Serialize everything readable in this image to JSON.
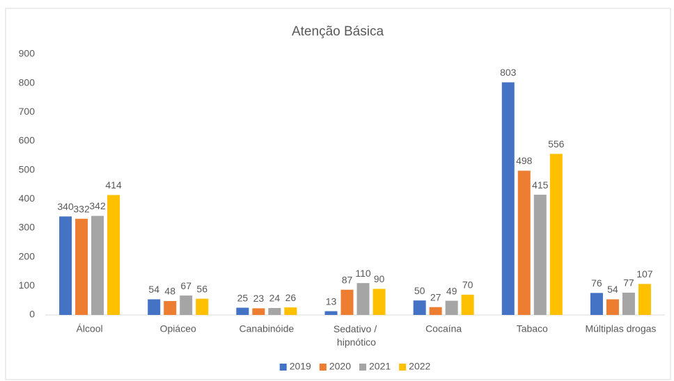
{
  "chart_data": {
    "type": "bar",
    "title": "Atenção Básica",
    "categories": [
      "Álcool",
      "Opiáceo",
      "Canabinóide",
      "Sedativo / hipnótico",
      "Cocaína",
      "Tabaco",
      "Múltiplas drogas"
    ],
    "series": [
      {
        "name": "2019",
        "color": "#4472c4",
        "values": [
          340,
          54,
          25,
          13,
          50,
          803,
          76
        ]
      },
      {
        "name": "2020",
        "color": "#ed7d31",
        "values": [
          332,
          48,
          23,
          87,
          27,
          498,
          54
        ]
      },
      {
        "name": "2021",
        "color": "#a5a5a5",
        "values": [
          342,
          67,
          24,
          110,
          49,
          415,
          77
        ]
      },
      {
        "name": "2022",
        "color": "#ffc000",
        "values": [
          414,
          56,
          26,
          90,
          70,
          556,
          107
        ]
      }
    ],
    "ylim": [
      0,
      900
    ],
    "yticks": [
      0,
      100,
      200,
      300,
      400,
      500,
      600,
      700,
      800,
      900
    ],
    "grid": false,
    "legend": "bottom"
  }
}
